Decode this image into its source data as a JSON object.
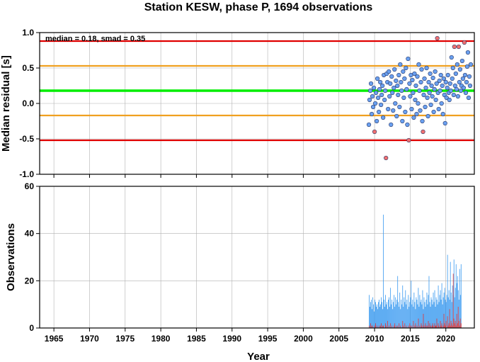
{
  "chart_data": [
    {
      "type": "scatter",
      "title": "Station KESW, phase P, 1694 observations",
      "xlabel": "",
      "ylabel": "Median residual [s]",
      "annotation": "median = 0.18, smad = 0.35",
      "xlim": [
        1963,
        2024
      ],
      "ylim": [
        -1.0,
        1.0
      ],
      "y_ticks": [
        "-1.0",
        "-0.5",
        "0.0",
        "0.5",
        "1.0"
      ],
      "grid": true,
      "reference_lines": [
        {
          "y": 0.18,
          "color": "#00ee00",
          "role": "median"
        },
        {
          "y": 0.53,
          "color": "#f0a020",
          "role": "median + 1 smad"
        },
        {
          "y": -0.17,
          "color": "#f0a020",
          "role": "median - 1 smad"
        },
        {
          "y": 0.88,
          "color": "#e00000",
          "role": "median + 2 smad"
        },
        {
          "y": -0.52,
          "color": "#e00000",
          "role": "median - 2 smad"
        }
      ],
      "colors": {
        "inlier": "#6aa0f0",
        "outlier": "#f07070"
      },
      "points": [
        {
          "x": 2009.2,
          "y": -0.3
        },
        {
          "x": 2009.3,
          "y": 0.05
        },
        {
          "x": 2009.4,
          "y": 0.18
        },
        {
          "x": 2009.5,
          "y": 0.28
        },
        {
          "x": 2009.6,
          "y": -0.15
        },
        {
          "x": 2009.7,
          "y": 0.1
        },
        {
          "x": 2009.8,
          "y": -0.05
        },
        {
          "x": 2009.9,
          "y": 0.22
        },
        {
          "x": 2010.0,
          "y": -0.4,
          "outlier": true
        },
        {
          "x": 2010.1,
          "y": 0.0
        },
        {
          "x": 2010.2,
          "y": 0.15
        },
        {
          "x": 2010.3,
          "y": -0.25
        },
        {
          "x": 2010.4,
          "y": 0.35
        },
        {
          "x": 2010.5,
          "y": 0.08
        },
        {
          "x": 2010.6,
          "y": -0.12
        },
        {
          "x": 2010.7,
          "y": 0.2
        },
        {
          "x": 2010.8,
          "y": 0.3
        },
        {
          "x": 2010.9,
          "y": -0.02
        },
        {
          "x": 2011.0,
          "y": 0.12
        },
        {
          "x": 2011.1,
          "y": 0.25
        },
        {
          "x": 2011.2,
          "y": -0.2
        },
        {
          "x": 2011.3,
          "y": 0.4
        },
        {
          "x": 2011.4,
          "y": 0.05
        },
        {
          "x": 2011.5,
          "y": 0.18
        },
        {
          "x": 2011.6,
          "y": -0.77,
          "outlier": true
        },
        {
          "x": 2011.7,
          "y": 0.42
        },
        {
          "x": 2011.8,
          "y": 0.3
        },
        {
          "x": 2011.9,
          "y": -0.08
        },
        {
          "x": 2012.0,
          "y": 0.45
        },
        {
          "x": 2012.1,
          "y": 0.1
        },
        {
          "x": 2012.2,
          "y": 0.28
        },
        {
          "x": 2012.3,
          "y": -0.3
        },
        {
          "x": 2012.4,
          "y": 0.38
        },
        {
          "x": 2012.5,
          "y": 0.15
        },
        {
          "x": 2012.6,
          "y": -0.1
        },
        {
          "x": 2012.7,
          "y": 0.22
        },
        {
          "x": 2012.8,
          "y": 0.48
        },
        {
          "x": 2012.9,
          "y": 0.0
        },
        {
          "x": 2013.0,
          "y": 0.32
        },
        {
          "x": 2013.1,
          "y": -0.18
        },
        {
          "x": 2013.2,
          "y": 0.25
        },
        {
          "x": 2013.3,
          "y": 0.12
        },
        {
          "x": 2013.4,
          "y": 0.4
        },
        {
          "x": 2013.5,
          "y": -0.05
        },
        {
          "x": 2013.6,
          "y": 0.55
        },
        {
          "x": 2013.7,
          "y": 0.3
        },
        {
          "x": 2013.8,
          "y": 0.18
        },
        {
          "x": 2013.9,
          "y": -0.25
        },
        {
          "x": 2014.0,
          "y": 0.45
        },
        {
          "x": 2014.1,
          "y": 0.08
        },
        {
          "x": 2014.2,
          "y": 0.35
        },
        {
          "x": 2014.3,
          "y": -0.12
        },
        {
          "x": 2014.4,
          "y": 0.5
        },
        {
          "x": 2014.5,
          "y": 0.2
        },
        {
          "x": 2014.6,
          "y": -0.3
        },
        {
          "x": 2014.7,
          "y": 0.63
        },
        {
          "x": 2014.8,
          "y": -0.52,
          "outlier": true
        },
        {
          "x": 2014.9,
          "y": 0.28
        },
        {
          "x": 2015.0,
          "y": 0.1
        },
        {
          "x": 2015.1,
          "y": 0.4
        },
        {
          "x": 2015.2,
          "y": -0.08
        },
        {
          "x": 2015.3,
          "y": 0.33
        },
        {
          "x": 2015.4,
          "y": 0.15
        },
        {
          "x": 2015.5,
          "y": -0.2
        },
        {
          "x": 2015.6,
          "y": 0.42
        },
        {
          "x": 2015.7,
          "y": 0.05
        },
        {
          "x": 2015.8,
          "y": 0.25
        },
        {
          "x": 2015.9,
          "y": -0.15
        },
        {
          "x": 2016.0,
          "y": 0.38
        },
        {
          "x": 2016.1,
          "y": 0.0
        },
        {
          "x": 2016.2,
          "y": 0.55
        },
        {
          "x": 2016.3,
          "y": 0.18
        },
        {
          "x": 2016.4,
          "y": -0.1
        },
        {
          "x": 2016.5,
          "y": 0.3
        },
        {
          "x": 2016.6,
          "y": 0.48
        },
        {
          "x": 2016.7,
          "y": -0.25
        },
        {
          "x": 2016.8,
          "y": -0.4,
          "outlier": true
        },
        {
          "x": 2016.9,
          "y": 0.12
        },
        {
          "x": 2017.0,
          "y": 0.35
        },
        {
          "x": 2017.1,
          "y": -0.05
        },
        {
          "x": 2017.2,
          "y": 0.22
        },
        {
          "x": 2017.3,
          "y": 0.5
        },
        {
          "x": 2017.4,
          "y": 0.08
        },
        {
          "x": 2017.5,
          "y": -0.18
        },
        {
          "x": 2017.6,
          "y": 0.3
        },
        {
          "x": 2017.7,
          "y": 0.15
        },
        {
          "x": 2017.8,
          "y": 0.42
        },
        {
          "x": 2017.9,
          "y": -0.02
        },
        {
          "x": 2018.0,
          "y": 0.25
        },
        {
          "x": 2018.1,
          "y": 0.1
        },
        {
          "x": 2018.2,
          "y": 0.36
        },
        {
          "x": 2018.3,
          "y": -0.12
        },
        {
          "x": 2018.4,
          "y": 0.2
        },
        {
          "x": 2018.5,
          "y": 0.45
        },
        {
          "x": 2018.6,
          "y": 0.05
        },
        {
          "x": 2018.7,
          "y": 0.28
        },
        {
          "x": 2018.8,
          "y": 0.92,
          "outlier": true
        },
        {
          "x": 2018.9,
          "y": 0.15
        },
        {
          "x": 2019.0,
          "y": -0.08
        },
        {
          "x": 2019.1,
          "y": 0.32
        },
        {
          "x": 2019.2,
          "y": 0.18
        },
        {
          "x": 2019.3,
          "y": 0.4
        },
        {
          "x": 2019.4,
          "y": 0.0
        },
        {
          "x": 2019.5,
          "y": 0.25
        },
        {
          "x": 2019.6,
          "y": -0.15
        },
        {
          "x": 2019.7,
          "y": 0.35
        },
        {
          "x": 2019.8,
          "y": 0.12
        },
        {
          "x": 2019.9,
          "y": -0.28
        },
        {
          "x": 2020.0,
          "y": 0.3
        },
        {
          "x": 2020.1,
          "y": 0.08
        },
        {
          "x": 2020.2,
          "y": 0.22
        },
        {
          "x": 2020.3,
          "y": 0.4
        },
        {
          "x": 2020.4,
          "y": 0.15
        },
        {
          "x": 2020.5,
          "y": 0.05
        },
        {
          "x": 2020.6,
          "y": 0.28
        },
        {
          "x": 2020.7,
          "y": 0.18
        },
        {
          "x": 2020.8,
          "y": 0.65
        },
        {
          "x": 2020.9,
          "y": 0.35
        },
        {
          "x": 2021.0,
          "y": 0.5
        },
        {
          "x": 2021.1,
          "y": 0.12
        },
        {
          "x": 2021.2,
          "y": 0.8,
          "outlier": true
        },
        {
          "x": 2021.3,
          "y": 0.25
        },
        {
          "x": 2021.4,
          "y": 0.42
        },
        {
          "x": 2021.5,
          "y": 0.2
        },
        {
          "x": 2021.6,
          "y": 0.55
        },
        {
          "x": 2021.7,
          "y": 0.1
        },
        {
          "x": 2021.8,
          "y": 0.8,
          "outlier": true
        },
        {
          "x": 2021.9,
          "y": 0.3
        },
        {
          "x": 2022.0,
          "y": 0.48
        },
        {
          "x": 2022.1,
          "y": 0.18
        },
        {
          "x": 2022.2,
          "y": 0.25
        },
        {
          "x": 2022.3,
          "y": 0.6
        },
        {
          "x": 2022.4,
          "y": 0.35
        },
        {
          "x": 2022.5,
          "y": 0.22
        },
        {
          "x": 2022.6,
          "y": 0.86,
          "outlier": true
        },
        {
          "x": 2022.7,
          "y": 0.4
        },
        {
          "x": 2022.8,
          "y": 0.15
        },
        {
          "x": 2022.9,
          "y": 0.3
        },
        {
          "x": 2023.0,
          "y": 0.52
        },
        {
          "x": 2023.1,
          "y": 0.72
        },
        {
          "x": 2023.2,
          "y": 0.08
        },
        {
          "x": 2023.3,
          "y": 0.38
        },
        {
          "x": 2023.4,
          "y": 0.25
        },
        {
          "x": 2023.5,
          "y": 0.55
        }
      ]
    },
    {
      "type": "bar",
      "title": "",
      "xlabel": "Year",
      "ylabel": "Observations",
      "xlim": [
        1963,
        2024
      ],
      "ylim": [
        0,
        60
      ],
      "x_ticks": [
        "1965",
        "1970",
        "1975",
        "1980",
        "1985",
        "1990",
        "1995",
        "2000",
        "2005",
        "2010",
        "2015",
        "2020"
      ],
      "y_ticks": [
        "0",
        "20",
        "40",
        "60"
      ],
      "grid": true,
      "colors": {
        "inlier": "#3a9af0",
        "outlier": "#e03030"
      },
      "bin_start": 2009.2,
      "bin_width": 0.1,
      "values": [
        14,
        9,
        11,
        12,
        8,
        13,
        10,
        7,
        12,
        11,
        9,
        10,
        8,
        11,
        12,
        9,
        10,
        13,
        11,
        8,
        48,
        12,
        9,
        14,
        10,
        11,
        8,
        12,
        13,
        9,
        17,
        10,
        12,
        8,
        11,
        14,
        9,
        13,
        10,
        12,
        22,
        11,
        9,
        15,
        8,
        12,
        10,
        18,
        9,
        13,
        11,
        16,
        10,
        12,
        8,
        14,
        9,
        11,
        13,
        20,
        10,
        12,
        9,
        15,
        11,
        8,
        13,
        12,
        10,
        17,
        9,
        14,
        11,
        12,
        10,
        16,
        8,
        13,
        11,
        9,
        12,
        15,
        10,
        14,
        22,
        11,
        9,
        13,
        12,
        10,
        15,
        11,
        16,
        9,
        13,
        12,
        10,
        18,
        11,
        14,
        16,
        12,
        19,
        10,
        13,
        15,
        17,
        12,
        11,
        14,
        31,
        13,
        16,
        12,
        28,
        15,
        11,
        18,
        14,
        29,
        13,
        17,
        27,
        19,
        22,
        16,
        12,
        25,
        14,
        27
      ],
      "outlier_values": [
        1,
        0,
        2,
        1,
        0,
        1,
        0,
        0,
        1,
        2,
        0,
        1,
        0,
        0,
        1,
        0,
        1,
        2,
        0,
        1,
        1,
        0,
        0,
        2,
        1,
        0,
        3,
        0,
        1,
        0,
        2,
        0,
        1,
        0,
        0,
        1,
        2,
        0,
        1,
        0,
        1,
        0,
        2,
        0,
        1,
        0,
        0,
        3,
        1,
        0,
        2,
        0,
        1,
        0,
        0,
        1,
        0,
        2,
        1,
        0,
        1,
        0,
        3,
        0,
        1,
        2,
        0,
        1,
        0,
        4,
        0,
        1,
        0,
        2,
        1,
        0,
        6,
        1,
        0,
        2,
        1,
        0,
        1,
        3,
        0,
        2,
        1,
        0,
        1,
        2,
        1,
        0,
        2,
        1,
        1,
        4,
        0,
        2,
        1,
        0,
        3,
        1,
        2,
        0,
        1,
        6,
        2,
        1,
        3,
        0,
        5,
        1,
        2,
        8,
        1,
        3,
        2,
        1,
        23,
        4,
        2,
        3,
        1,
        6,
        2,
        9,
        3,
        1,
        4,
        2
      ]
    }
  ]
}
